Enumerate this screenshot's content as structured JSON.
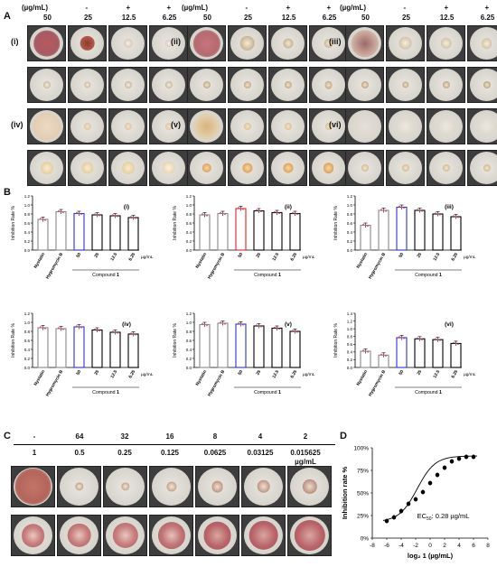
{
  "panel_labels": {
    "a": "A",
    "b": "B",
    "c": "C",
    "d": "D"
  },
  "panel_a": {
    "header": {
      "unit": "(µg/mL)",
      "signs": [
        "-",
        "+",
        "+"
      ],
      "concentrations": [
        "50",
        "25",
        "12.5",
        "6.25"
      ]
    },
    "groups": [
      "(i)",
      "(ii)",
      "(iii)",
      "(iv)",
      "(v)",
      "(vi)"
    ]
  },
  "panel_b": {
    "ylabel": "Inhibition Rate %",
    "yticks_main": [
      "0.0",
      "0.2",
      "0.4",
      "0.6",
      "0.8",
      "1.0",
      "1.2"
    ],
    "yticks_iii": [
      "0.0",
      "0.2",
      "0.4",
      "0.6",
      "0.8",
      "1.0",
      "1.2"
    ],
    "yticks_vi": [
      "0.0",
      "0.2",
      "0.4",
      "0.6",
      "0.8",
      "1.0",
      "1.2",
      "1.4"
    ],
    "xlabels": [
      "Nystatin",
      "Hygromycin B",
      "50",
      "25",
      "12.5",
      "6.25"
    ],
    "unit": "µg/mL",
    "compound_label": "Compound",
    "compound_number": "1"
  },
  "chart_data": [
    {
      "type": "bar",
      "title": "(i)",
      "ylabel": "Inhibition Rate %",
      "categories": [
        "Nystatin",
        "Hygromycin B",
        "50",
        "25",
        "12.5",
        "6.25"
      ],
      "values": [
        0.68,
        0.85,
        0.81,
        0.78,
        0.76,
        0.72
      ],
      "ylim": [
        0,
        1.2
      ]
    },
    {
      "type": "bar",
      "title": "(ii)",
      "ylabel": "Inhibition Rate %",
      "categories": [
        "Nystatin",
        "Hygromycin B",
        "50",
        "25",
        "12.5",
        "6.25"
      ],
      "values": [
        0.78,
        0.81,
        0.92,
        0.87,
        0.83,
        0.81
      ],
      "ylim": [
        0,
        1.2
      ]
    },
    {
      "type": "bar",
      "title": "(iii)",
      "ylabel": "Inhibition Rate %",
      "categories": [
        "Nystatin",
        "Hygromycin B",
        "50",
        "25",
        "12.5",
        "6.25"
      ],
      "values": [
        0.55,
        0.88,
        0.95,
        0.88,
        0.8,
        0.74
      ],
      "ylim": [
        0,
        1.2
      ]
    },
    {
      "type": "bar",
      "title": "(iv)",
      "ylabel": "Inhibition Rate %",
      "categories": [
        "Nystatin",
        "Hygromycin B",
        "50",
        "25",
        "12.5",
        "6.25"
      ],
      "values": [
        0.88,
        0.86,
        0.9,
        0.83,
        0.78,
        0.74
      ],
      "ylim": [
        0,
        1.2
      ]
    },
    {
      "type": "bar",
      "title": "(v)",
      "ylabel": "Inhibition Rate %",
      "categories": [
        "Nystatin",
        "Hygromycin B",
        "50",
        "25",
        "12.5",
        "6.25"
      ],
      "values": [
        0.95,
        0.98,
        0.96,
        0.92,
        0.87,
        0.8
      ],
      "ylim": [
        0,
        1.2
      ]
    },
    {
      "type": "bar",
      "title": "(vi)",
      "ylabel": "Inhibition Rate %",
      "categories": [
        "Nystatin",
        "Hygromycin B",
        "50",
        "25",
        "12.5",
        "6.25"
      ],
      "values": [
        0.42,
        0.32,
        0.77,
        0.74,
        0.72,
        0.62
      ],
      "ylim": [
        0,
        1.4
      ]
    },
    {
      "type": "scatter",
      "title": "",
      "xlabel": "log₂ 1 (µg/mL)",
      "ylabel": "Inhibition rate %",
      "x": [
        -6,
        -5,
        -4,
        -3,
        -2,
        -1,
        0,
        1,
        2,
        3,
        4,
        5,
        6
      ],
      "y": [
        19,
        23,
        30,
        38,
        43,
        51,
        61,
        70,
        78,
        85,
        88,
        90,
        90
      ],
      "xlim": [
        -8,
        8
      ],
      "ylim": [
        0,
        100
      ],
      "xticks": [
        "-8",
        "-6",
        "-4",
        "-2",
        "0",
        "2",
        "4",
        "6",
        "8"
      ],
      "yticks": [
        "0%",
        "25%",
        "50%",
        "75%",
        "100%"
      ],
      "annotation_prefix": "EC",
      "annotation_sub": "50",
      "annotation_value": ": 0.28 µg/mL"
    }
  ],
  "panel_c": {
    "top_row": [
      "-",
      "64",
      "32",
      "16",
      "8",
      "4",
      "2"
    ],
    "bottom_row": [
      "1",
      "0.5",
      "0.25",
      "0.125",
      "0.0625",
      "0.03125",
      "0.015625"
    ],
    "unit": "µg/mL"
  },
  "colors": {
    "white_bar": "#888888",
    "blue_bar": "#2a33d6",
    "red_bar": "#e0202a",
    "black_bar": "#000000",
    "pink_dot": "#d0506a"
  }
}
